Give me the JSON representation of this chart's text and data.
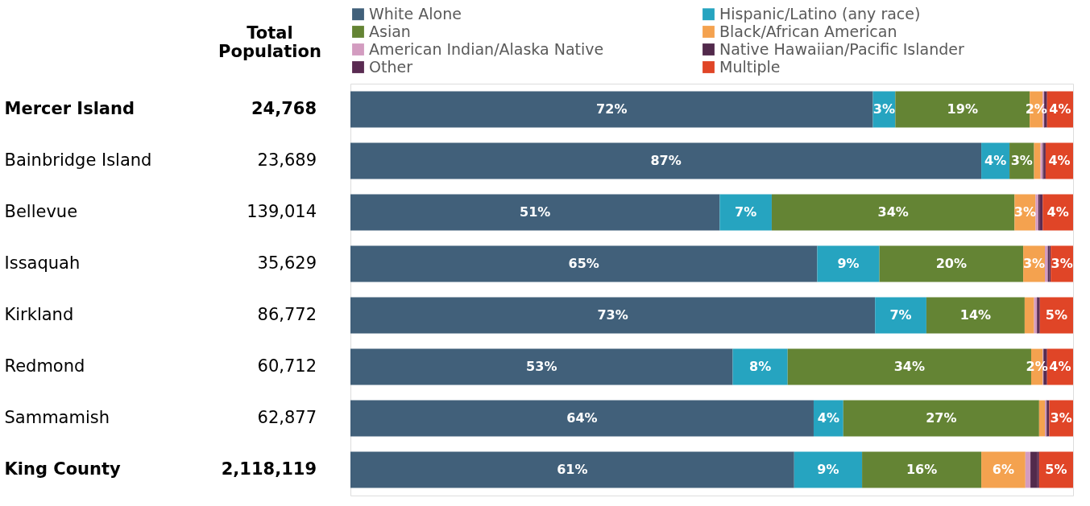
{
  "chart_data": {
    "type": "bar",
    "orientation": "horizontal",
    "stacked": true,
    "legend": "top",
    "categories": [
      "Mercer Island",
      "Bainbridge Island",
      "Bellevue",
      "Issaquah",
      "Kirkland",
      "Redmond",
      "Sammamish",
      "King County"
    ],
    "series": [
      {
        "name": "White Alone",
        "color": "#41607a",
        "values": [
          72.3,
          87.3,
          51.1,
          64.6,
          72.6,
          52.9,
          64.1,
          61.4
        ],
        "value_labels": [
          "72%",
          "87%",
          "51%",
          "65%",
          "73%",
          "53%",
          "64%",
          "61%"
        ]
      },
      {
        "name": "Hispanic/Latino (any race)",
        "color": "#26a4c0",
        "values": [
          3.1,
          3.9,
          7.2,
          8.6,
          7.1,
          7.6,
          4.1,
          9.4
        ],
        "value_labels": [
          "3%",
          "4%",
          "7%",
          "9%",
          "7%",
          "8%",
          "4%",
          "9%"
        ]
      },
      {
        "name": "Asian",
        "color": "#648434",
        "values": [
          18.6,
          3.4,
          33.6,
          19.9,
          13.6,
          33.7,
          27.1,
          16.5
        ],
        "value_labels": [
          "19%",
          "3%",
          "34%",
          "20%",
          "14%",
          "34%",
          "27%",
          "16%"
        ]
      },
      {
        "name": "Black/African American",
        "color": "#f4a24f",
        "values": [
          1.8,
          0.9,
          2.9,
          3.0,
          1.3,
          1.6,
          0.8,
          6.1
        ],
        "value_labels": [
          "2%",
          null,
          "3%",
          "3%",
          null,
          "2%",
          null,
          "6%"
        ]
      },
      {
        "name": "American Indian/Alaska Native",
        "color": "#d39cc0",
        "values": [
          0.2,
          0.3,
          0.4,
          0.4,
          0.4,
          0.1,
          0.2,
          0.7
        ]
      },
      {
        "name": "Native Hawaiian/Pacific Islander",
        "color": "#522a4c",
        "values": [
          0.1,
          0.1,
          0.2,
          0.2,
          0.1,
          0.2,
          0.1,
          0.9
        ]
      },
      {
        "name": "Other",
        "color": "#5a2b52",
        "values": [
          0.3,
          0.3,
          0.4,
          0.2,
          0.3,
          0.3,
          0.3,
          0.3
        ]
      },
      {
        "name": "Multiple",
        "color": "#e04527",
        "values": [
          3.6,
          3.8,
          4.2,
          3.1,
          4.6,
          3.6,
          3.3,
          4.7
        ],
        "value_labels": [
          "4%",
          "4%",
          "4%",
          "3%",
          "5%",
          "4%",
          "3%",
          "5%"
        ]
      }
    ],
    "annotations": [
      "Total Population",
      "24,768",
      "23,689",
      "139,014",
      "35,629",
      "86,772",
      "60,712",
      "62,877",
      "2,118,119"
    ]
  }
}
